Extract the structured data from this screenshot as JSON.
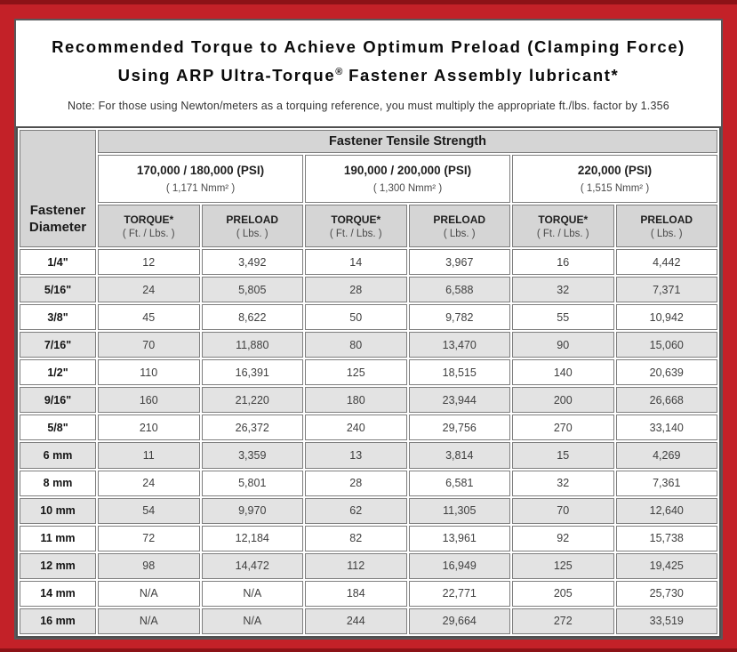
{
  "header": {
    "title_line1": "Recommended Torque to Achieve Optimum Preload (Clamping Force)",
    "title_line2_pre": "Using ARP Ultra-Torque",
    "title_line2_reg": "®",
    "title_line2_post": " Fastener Assembly lubricant*",
    "note": "Note: For those using Newton/meters as a torquing reference, you must multiply the appropriate ft./lbs. factor by 1.356"
  },
  "table": {
    "corner_label": "Fastener Diameter",
    "tensile_header": "Fastener Tensile Strength",
    "strength_groups": [
      {
        "psi": "170,000 / 180,000 (PSI)",
        "nmm": "( 1,171 Nmm² )"
      },
      {
        "psi": "190,000 / 200,000 (PSI)",
        "nmm": "( 1,300 Nmm² )"
      },
      {
        "psi": "220,000 (PSI)",
        "nmm": "( 1,515 Nmm² )"
      }
    ],
    "torque_label": "TORQUE*",
    "torque_unit": "( Ft. / Lbs. )",
    "preload_label": "PRELOAD",
    "preload_unit": "( Lbs. )",
    "rows": [
      [
        "1/4\"",
        "12",
        "3,492",
        "14",
        "3,967",
        "16",
        "4,442"
      ],
      [
        "5/16\"",
        "24",
        "5,805",
        "28",
        "6,588",
        "32",
        "7,371"
      ],
      [
        "3/8\"",
        "45",
        "8,622",
        "50",
        "9,782",
        "55",
        "10,942"
      ],
      [
        "7/16\"",
        "70",
        "11,880",
        "80",
        "13,470",
        "90",
        "15,060"
      ],
      [
        "1/2\"",
        "110",
        "16,391",
        "125",
        "18,515",
        "140",
        "20,639"
      ],
      [
        "9/16\"",
        "160",
        "21,220",
        "180",
        "23,944",
        "200",
        "26,668"
      ],
      [
        "5/8\"",
        "210",
        "26,372",
        "240",
        "29,756",
        "270",
        "33,140"
      ],
      [
        "6 mm",
        "11",
        "3,359",
        "13",
        "3,814",
        "15",
        "4,269"
      ],
      [
        "8 mm",
        "24",
        "5,801",
        "28",
        "6,581",
        "32",
        "7,361"
      ],
      [
        "10 mm",
        "54",
        "9,970",
        "62",
        "11,305",
        "70",
        "12,640"
      ],
      [
        "11 mm",
        "72",
        "12,184",
        "82",
        "13,961",
        "92",
        "15,738"
      ],
      [
        "12 mm",
        "98",
        "14,472",
        "112",
        "16,949",
        "125",
        "19,425"
      ],
      [
        "14 mm",
        "N/A",
        "N/A",
        "184",
        "22,771",
        "205",
        "25,730"
      ],
      [
        "16 mm",
        "N/A",
        "N/A",
        "244",
        "29,664",
        "272",
        "33,519"
      ]
    ],
    "colors": {
      "frame_red": "#c32128",
      "frame_red_dark": "#8c1217",
      "header_gray": "#d5d5d5",
      "stripe_gray": "#e3e3e3",
      "table_border": "#4f4f4f"
    }
  }
}
